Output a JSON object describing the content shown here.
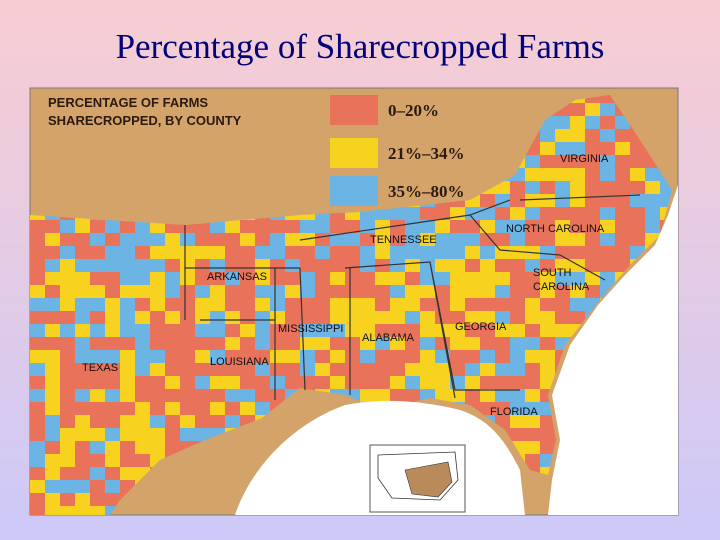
{
  "title": "Percentage of Sharecropped Farms",
  "map": {
    "heading": [
      "PERCENTAGE OF FARMS",
      "SHARECROPPED, BY COUNTY"
    ],
    "legend": [
      {
        "label": "0–20%",
        "color": "#e8735a"
      },
      {
        "label": "21%–34%",
        "color": "#f7d21e"
      },
      {
        "label": "35%–80%",
        "color": "#6cb4e4"
      }
    ],
    "states": [
      [
        "VIRGINIA"
      ],
      [
        "TENNESSEE"
      ],
      [
        "NORTH CAROLINA"
      ],
      [
        "ARKANSAS"
      ],
      [
        "SOUTH",
        "CAROLINA"
      ],
      [
        "MISSISSIPPI"
      ],
      [
        "ALABAMA"
      ],
      [
        "GEORGIA"
      ],
      [
        "TEXAS"
      ],
      [
        "LOUISIANA"
      ],
      [
        "FLORIDA"
      ]
    ]
  }
}
